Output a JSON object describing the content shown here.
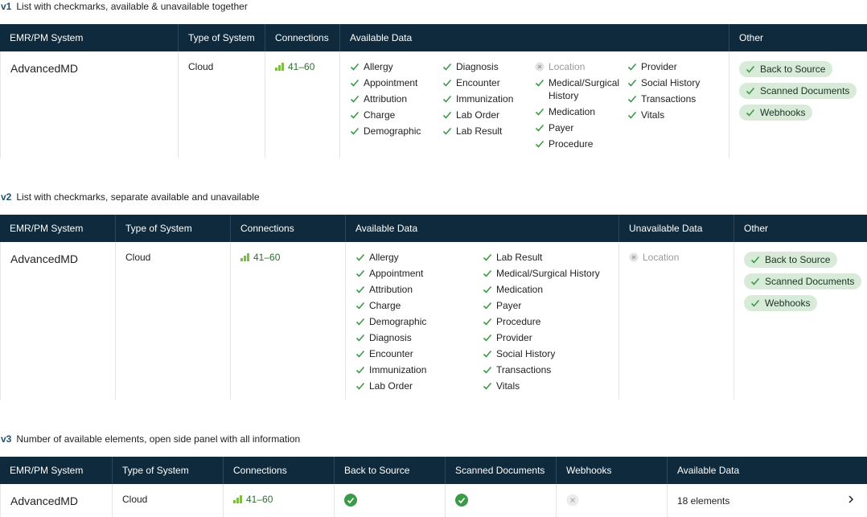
{
  "sections": [
    {
      "version": "v1",
      "title": "List with checkmarks, available & unavailable together",
      "columns": [
        "EMR/PM System",
        "Type of System",
        "Connections",
        "Available Data",
        "Other"
      ],
      "row": {
        "system": "AdvancedMD",
        "type": "Cloud",
        "connections": "41–60",
        "data": [
          [
            {
              "label": "Allergy",
              "available": true
            },
            {
              "label": "Appointment",
              "available": true
            },
            {
              "label": "Attribution",
              "available": true
            },
            {
              "label": "Charge",
              "available": true
            },
            {
              "label": "Demographic",
              "available": true
            }
          ],
          [
            {
              "label": "Diagnosis",
              "available": true
            },
            {
              "label": "Encounter",
              "available": true
            },
            {
              "label": "Immunization",
              "available": true
            },
            {
              "label": "Lab Order",
              "available": true
            },
            {
              "label": "Lab Result",
              "available": true
            }
          ],
          [
            {
              "label": "Location",
              "available": false
            },
            {
              "label": "Medical/Surgical History",
              "available": true
            },
            {
              "label": "Medication",
              "available": true
            },
            {
              "label": "Payer",
              "available": true
            },
            {
              "label": "Procedure",
              "available": true
            }
          ],
          [
            {
              "label": "Provider",
              "available": true
            },
            {
              "label": "Social History",
              "available": true
            },
            {
              "label": "Transactions",
              "available": true
            },
            {
              "label": "Vitals",
              "available": true
            }
          ]
        ],
        "other": [
          "Back to Source",
          "Scanned Documents",
          "Webhooks"
        ]
      }
    },
    {
      "version": "v2",
      "title": "List with checkmarks, separate available and unavailable",
      "columns": [
        "EMR/PM System",
        "Type of System",
        "Connections",
        "Available Data",
        "Unavailable Data",
        "Other"
      ],
      "row": {
        "system": "AdvancedMD",
        "type": "Cloud",
        "connections": "41–60",
        "data": [
          [
            {
              "label": "Allergy",
              "available": true
            },
            {
              "label": "Appointment",
              "available": true
            },
            {
              "label": "Attribution",
              "available": true
            },
            {
              "label": "Charge",
              "available": true
            },
            {
              "label": "Demographic",
              "available": true
            },
            {
              "label": "Diagnosis",
              "available": true
            },
            {
              "label": "Encounter",
              "available": true
            },
            {
              "label": "Immunization",
              "available": true
            },
            {
              "label": "Lab Order",
              "available": true
            }
          ],
          [
            {
              "label": "Lab Result",
              "available": true
            },
            {
              "label": "Medical/Surgical History",
              "available": true
            },
            {
              "label": "Medication",
              "available": true
            },
            {
              "label": "Payer",
              "available": true
            },
            {
              "label": "Procedure",
              "available": true
            },
            {
              "label": "Provider",
              "available": true
            },
            {
              "label": "Social History",
              "available": true
            },
            {
              "label": "Transactions",
              "available": true
            },
            {
              "label": "Vitals",
              "available": true
            }
          ]
        ],
        "unavailable": [
          [
            {
              "label": "Location",
              "available": false
            }
          ]
        ],
        "other": [
          "Back to Source",
          "Scanned Documents",
          "Webhooks"
        ]
      }
    },
    {
      "version": "v3",
      "title": "Number of available elements, open side panel with all information",
      "columns": [
        "EMR/PM System",
        "Type of System",
        "Connections",
        "Back to Source",
        "Scanned Documents",
        "Webhooks",
        "Available Data"
      ],
      "row": {
        "system": "AdvancedMD",
        "type": "Cloud",
        "connections": "41–60",
        "back_to_source": true,
        "scanned_documents": true,
        "webhooks": false,
        "available_data": "18 elements"
      }
    }
  ]
}
